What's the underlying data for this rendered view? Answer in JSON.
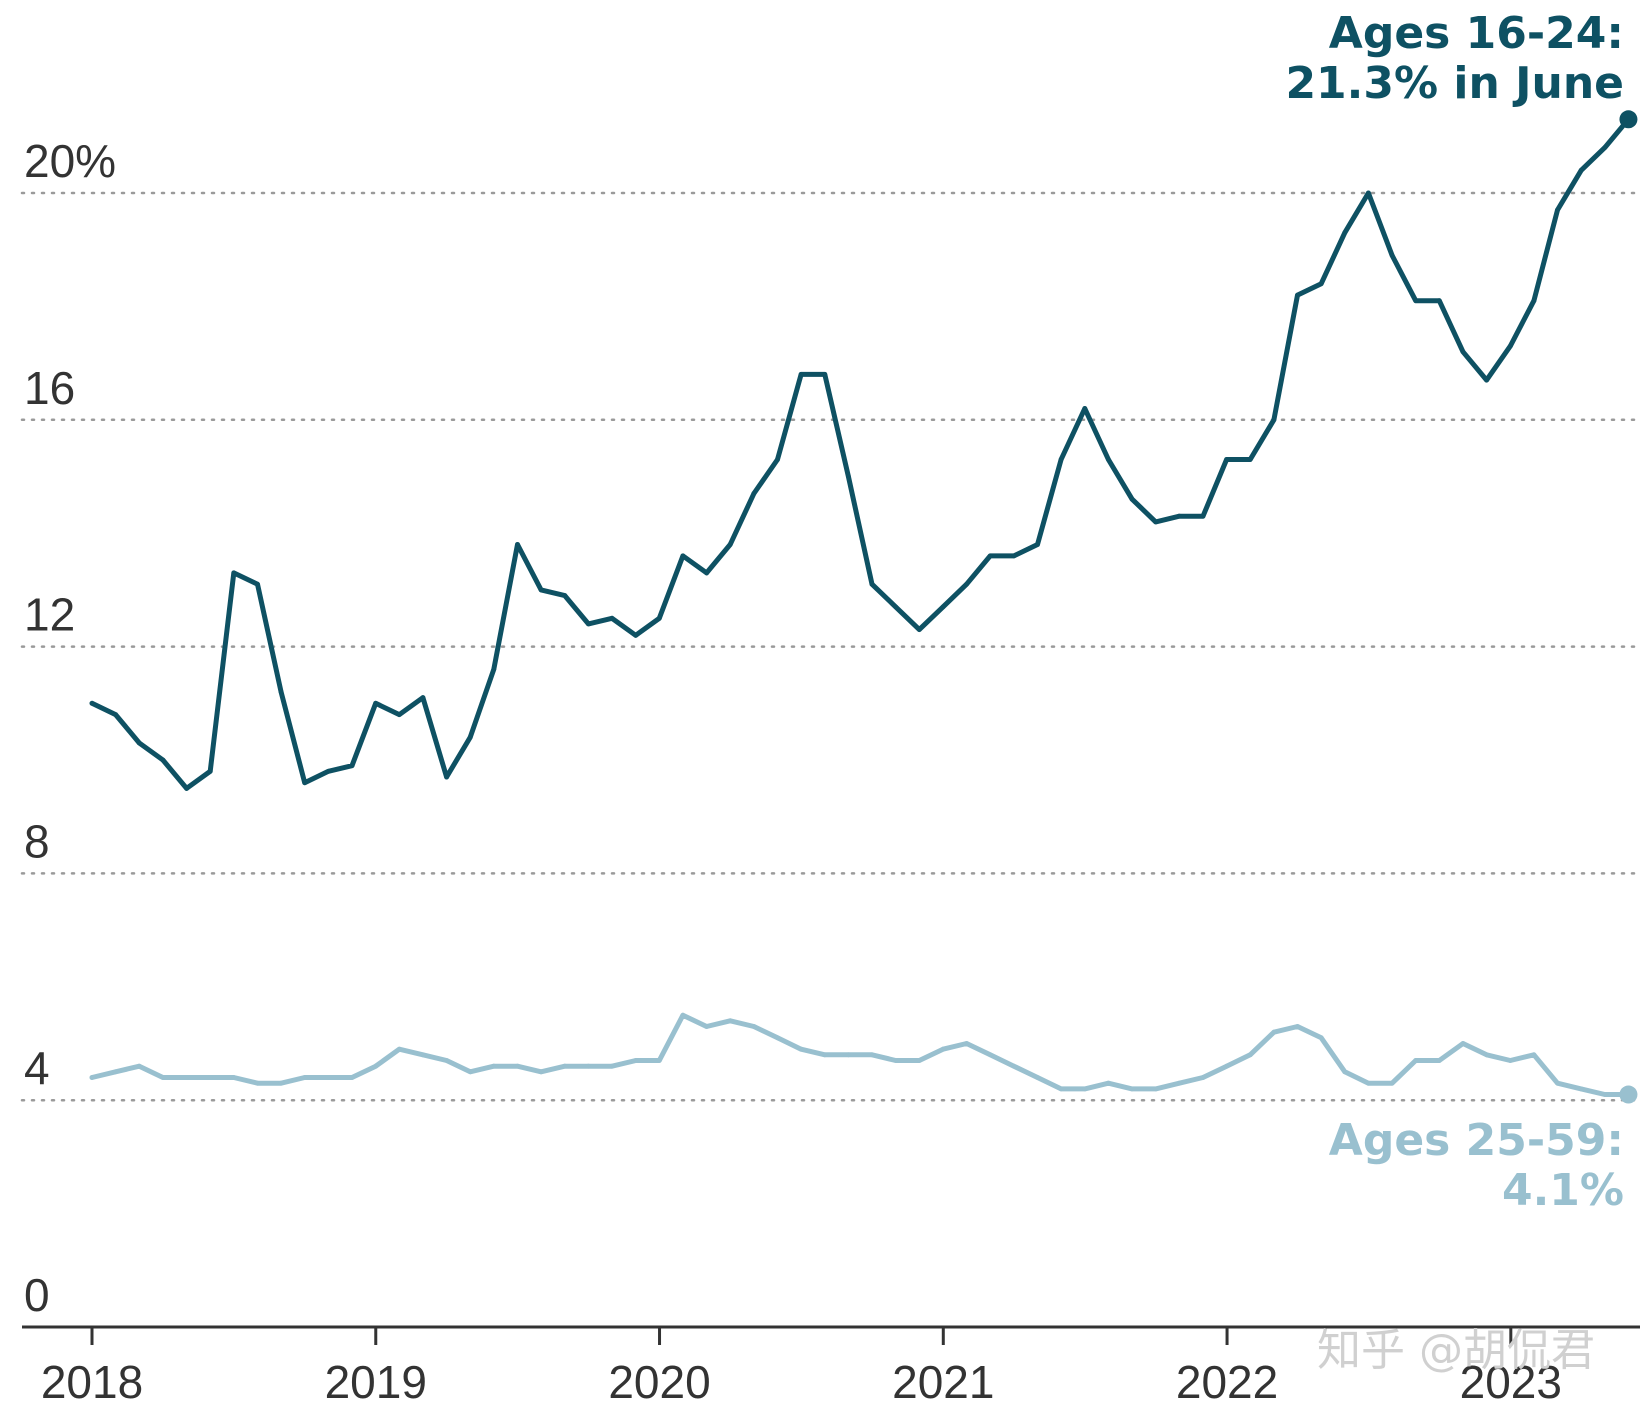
{
  "chart_data": {
    "type": "line",
    "yticks": [
      {
        "value": 20,
        "label": "20%"
      },
      {
        "value": 16,
        "label": "16"
      },
      {
        "value": 12,
        "label": "12"
      },
      {
        "value": 8,
        "label": "8"
      },
      {
        "value": 4,
        "label": "4"
      },
      {
        "value": 0,
        "label": "0"
      }
    ],
    "xticks": [
      {
        "value": 2018,
        "label": "2018"
      },
      {
        "value": 2019,
        "label": "2019"
      },
      {
        "value": 2020,
        "label": "2020"
      },
      {
        "value": 2021,
        "label": "2021"
      },
      {
        "value": 2022,
        "label": "2022"
      },
      {
        "value": 2023,
        "label": "2023"
      }
    ],
    "ylim": [
      0,
      22.5
    ],
    "xlim": [
      2018,
      2023.42
    ],
    "grid": "dotted horizontal",
    "colors": {
      "youth": "#0e5163",
      "adult": "#99c0cf"
    },
    "series": [
      {
        "key": "youth",
        "color": "#0e5163",
        "annotation": [
          "Ages 16-24:",
          "21.3% in June"
        ],
        "x_start": 2018,
        "step": 0.0833,
        "values": [
          11.0,
          10.8,
          10.3,
          10.0,
          9.5,
          9.8,
          13.3,
          13.1,
          11.2,
          9.6,
          9.8,
          9.9,
          11.0,
          10.8,
          11.1,
          9.7,
          10.4,
          11.6,
          13.8,
          13.0,
          12.9,
          12.4,
          12.5,
          12.2,
          12.5,
          13.6,
          13.3,
          13.8,
          14.7,
          15.3,
          16.8,
          16.8,
          15.0,
          13.1,
          12.7,
          12.3,
          12.7,
          13.1,
          13.6,
          13.6,
          13.8,
          15.3,
          16.2,
          15.3,
          14.6,
          14.2,
          14.3,
          14.3,
          15.3,
          15.3,
          16.0,
          18.2,
          18.4,
          19.3,
          20.0,
          18.9,
          18.1,
          18.1,
          17.2,
          16.7,
          17.3,
          18.1,
          19.7,
          20.4,
          20.8,
          21.3
        ]
      },
      {
        "key": "adult",
        "color": "#99c0cf",
        "annotation": [
          "Ages 25-59:",
          "4.1%"
        ],
        "x_start": 2018,
        "step": 0.0833,
        "values": [
          4.4,
          4.5,
          4.6,
          4.4,
          4.4,
          4.4,
          4.4,
          4.3,
          4.3,
          4.4,
          4.4,
          4.4,
          4.6,
          4.9,
          4.8,
          4.7,
          4.5,
          4.6,
          4.6,
          4.5,
          4.6,
          4.6,
          4.6,
          4.7,
          4.7,
          5.5,
          5.3,
          5.4,
          5.3,
          5.1,
          4.9,
          4.8,
          4.8,
          4.8,
          4.7,
          4.7,
          4.9,
          5.0,
          4.8,
          4.6,
          4.4,
          4.2,
          4.2,
          4.3,
          4.2,
          4.2,
          4.3,
          4.4,
          4.6,
          4.8,
          5.2,
          5.3,
          5.1,
          4.5,
          4.3,
          4.3,
          4.7,
          4.7,
          5.0,
          4.8,
          4.7,
          4.8,
          4.3,
          4.2,
          4.1,
          4.1
        ]
      }
    ]
  },
  "watermark": "知乎 @胡侃君"
}
